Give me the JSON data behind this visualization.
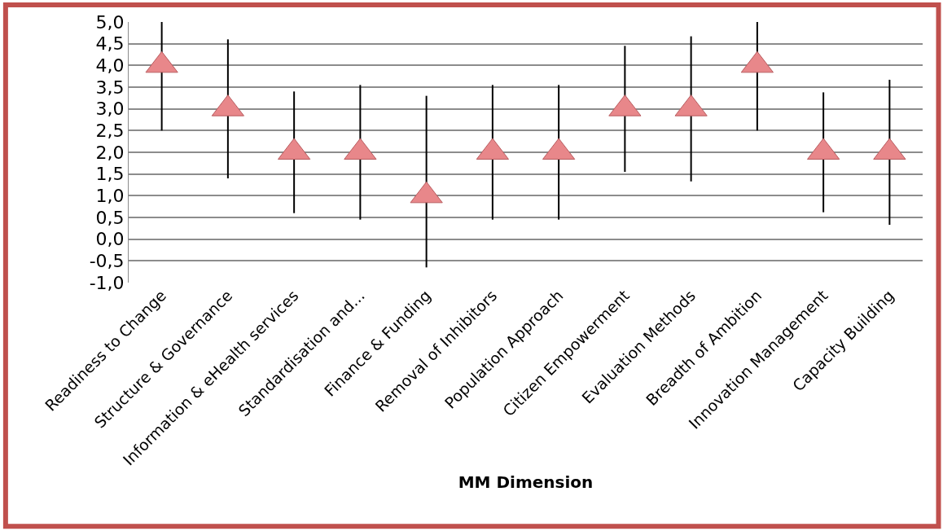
{
  "chart_data": {
    "type": "scatter",
    "xlabel": "MM Dimension",
    "categories": [
      "Readiness to Change",
      "Structure & Governance",
      "Information & eHealth services",
      "Standardisation and...",
      "Finance & Funding",
      "Removal of Inhibitors",
      "Population Approach",
      "Citizen Empowerment",
      "Evaluation Methods",
      "Breadth of Ambition",
      "Innovation Management",
      "Capacity Building"
    ],
    "values": [
      4,
      3,
      2,
      2,
      1,
      2,
      2,
      3,
      3,
      4,
      2,
      2
    ],
    "errors": [
      [
        2.5,
        5.0
      ],
      1.6,
      1.4,
      1.55,
      [
        -0.65,
        3.3
      ],
      1.55,
      1.55,
      1.45,
      1.67,
      [
        2.5,
        5.0
      ],
      1.38,
      1.67
    ],
    "color": "#e8878a",
    "marker": "triangle",
    "grid": "y",
    "ylim": [
      -1,
      5
    ],
    "yticks": [
      {
        "value": -1,
        "label": "-1,0"
      },
      {
        "value": -0.5,
        "label": "-0,5"
      },
      {
        "value": 0,
        "label": "0,0"
      },
      {
        "value": 0.5,
        "label": "0,5"
      },
      {
        "value": 1,
        "label": "1,0"
      },
      {
        "value": 1.5,
        "label": "1,5"
      },
      {
        "value": 2,
        "label": "2,0"
      },
      {
        "value": 2.5,
        "label": "2,5"
      },
      {
        "value": 3,
        "label": "3,0"
      },
      {
        "value": 3.5,
        "label": "3,5"
      },
      {
        "value": 4,
        "label": "4,0"
      },
      {
        "value": 4.5,
        "label": "4,5"
      },
      {
        "value": 5,
        "label": "5,0"
      }
    ]
  }
}
